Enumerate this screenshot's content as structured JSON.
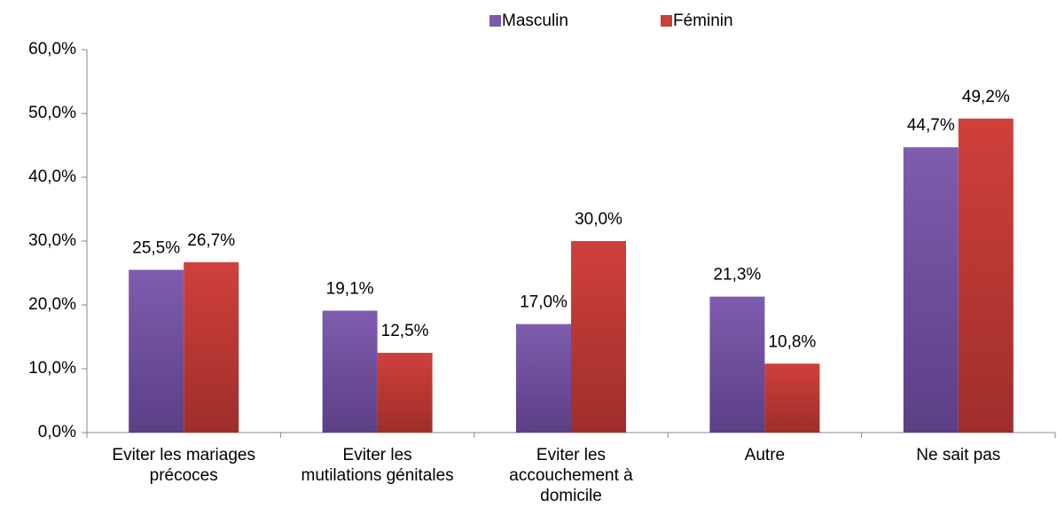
{
  "chart_data": {
    "type": "bar",
    "categories": [
      "Eviter les mariages\nprécoces",
      "Eviter les\nmutilations génitales",
      "Eviter les\naccouchement à\ndomicile",
      "Autre",
      "Ne sait pas"
    ],
    "series": [
      {
        "name": "Masculin",
        "color": "#7b5aa6",
        "values": [
          25.5,
          19.1,
          17.0,
          21.3,
          44.7
        ],
        "value_labels": [
          "25,5%",
          "19,1%",
          "17,0%",
          "21,3%",
          "44,7%"
        ]
      },
      {
        "name": "Féminin",
        "color": "#c9403a",
        "values": [
          26.7,
          12.5,
          30.0,
          10.8,
          49.2
        ],
        "value_labels": [
          "26,7%",
          "12,5%",
          "30,0%",
          "10,8%",
          "49,2%"
        ]
      }
    ],
    "ylim": [
      0,
      60
    ],
    "yticks": [
      {
        "value": 0,
        "label": "0,0%"
      },
      {
        "value": 10,
        "label": "10,0%"
      },
      {
        "value": 20,
        "label": "20,0%"
      },
      {
        "value": 30,
        "label": "30,0%"
      },
      {
        "value": 40,
        "label": "40,0%"
      },
      {
        "value": 50,
        "label": "50,0%"
      },
      {
        "value": 60,
        "label": "60,0%"
      }
    ],
    "legend": "top"
  }
}
